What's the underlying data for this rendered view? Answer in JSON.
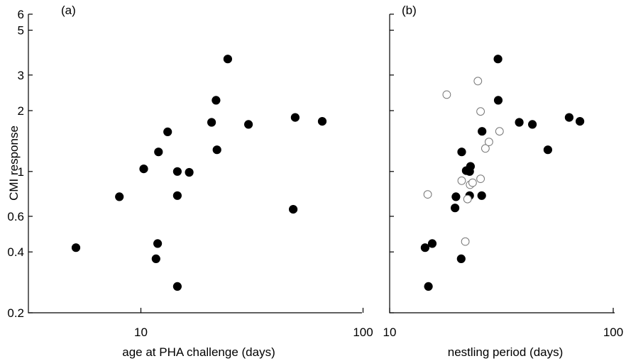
{
  "chart_data": [
    {
      "type": "scatter",
      "panel_label": "(a)",
      "xlabel": "age at PHA challenge (days)",
      "ylabel": "CMI  response",
      "x_scale": "log",
      "y_scale": "log",
      "xlim": [
        4.5,
        100
      ],
      "ylim": [
        0.2,
        6
      ],
      "x_ticks": [
        10,
        100
      ],
      "y_ticks": [
        0.2,
        0.4,
        0.6,
        1,
        2,
        3,
        5,
        6
      ],
      "series": [
        {
          "marker": "filled",
          "points": [
            {
              "x": 5.1,
              "y": 0.42
            },
            {
              "x": 8.0,
              "y": 0.75
            },
            {
              "x": 10.3,
              "y": 1.03
            },
            {
              "x": 11.7,
              "y": 0.37
            },
            {
              "x": 11.9,
              "y": 0.44
            },
            {
              "x": 12.0,
              "y": 1.25
            },
            {
              "x": 13.2,
              "y": 1.57
            },
            {
              "x": 14.6,
              "y": 0.27
            },
            {
              "x": 14.6,
              "y": 0.76
            },
            {
              "x": 14.6,
              "y": 1.0
            },
            {
              "x": 16.5,
              "y": 0.99
            },
            {
              "x": 20.8,
              "y": 1.75
            },
            {
              "x": 21.8,
              "y": 2.25
            },
            {
              "x": 22.0,
              "y": 1.28
            },
            {
              "x": 24.6,
              "y": 3.6
            },
            {
              "x": 30.5,
              "y": 1.71
            },
            {
              "x": 48.5,
              "y": 0.65
            },
            {
              "x": 49.5,
              "y": 1.85
            },
            {
              "x": 65.5,
              "y": 1.77
            }
          ]
        }
      ]
    },
    {
      "type": "scatter",
      "panel_label": "(b)",
      "xlabel": "nestling period (days)",
      "ylabel": "",
      "x_scale": "log",
      "y_scale": "log",
      "xlim": [
        10,
        100
      ],
      "ylim": [
        0.2,
        6
      ],
      "x_ticks": [
        10,
        100
      ],
      "y_ticks": [
        0.2,
        0.4,
        0.6,
        1,
        2,
        3,
        5,
        6
      ],
      "series": [
        {
          "marker": "filled",
          "points": [
            {
              "x": 14.4,
              "y": 0.42
            },
            {
              "x": 14.9,
              "y": 0.27
            },
            {
              "x": 15.5,
              "y": 0.44
            },
            {
              "x": 19.6,
              "y": 0.66
            },
            {
              "x": 19.8,
              "y": 0.75
            },
            {
              "x": 20.9,
              "y": 0.37
            },
            {
              "x": 21.0,
              "y": 1.25
            },
            {
              "x": 22.0,
              "y": 1.01
            },
            {
              "x": 22.8,
              "y": 0.76
            },
            {
              "x": 22.8,
              "y": 1.0
            },
            {
              "x": 23.0,
              "y": 1.06
            },
            {
              "x": 25.8,
              "y": 0.76
            },
            {
              "x": 25.9,
              "y": 1.58
            },
            {
              "x": 30.5,
              "y": 3.6
            },
            {
              "x": 30.6,
              "y": 2.25
            },
            {
              "x": 38.0,
              "y": 1.75
            },
            {
              "x": 43.5,
              "y": 1.71
            },
            {
              "x": 51.0,
              "y": 1.28
            },
            {
              "x": 63.5,
              "y": 1.85
            },
            {
              "x": 71.0,
              "y": 1.77
            }
          ]
        },
        {
          "marker": "open",
          "points": [
            {
              "x": 14.8,
              "y": 0.77
            },
            {
              "x": 18.0,
              "y": 2.4
            },
            {
              "x": 21.0,
              "y": 0.9
            },
            {
              "x": 21.8,
              "y": 0.45
            },
            {
              "x": 22.3,
              "y": 0.73
            },
            {
              "x": 22.9,
              "y": 0.86
            },
            {
              "x": 23.5,
              "y": 0.88
            },
            {
              "x": 24.8,
              "y": 2.8
            },
            {
              "x": 25.5,
              "y": 1.98
            },
            {
              "x": 25.5,
              "y": 0.92
            },
            {
              "x": 26.8,
              "y": 1.3
            },
            {
              "x": 27.8,
              "y": 1.4
            },
            {
              "x": 31.0,
              "y": 1.58
            }
          ]
        }
      ]
    }
  ]
}
